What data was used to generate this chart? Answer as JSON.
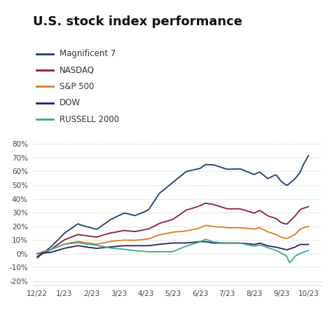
{
  "title": "U.S. stock index performance",
  "background_color": "#ffffff",
  "series_order": [
    "Magnificent 7",
    "NASDAQ",
    "S&P 500",
    "DOW",
    "RUSSELL 2000"
  ],
  "series": {
    "Magnificent 7": {
      "color": "#1b3f6e",
      "linewidth": 1.3
    },
    "NASDAQ": {
      "color": "#8b1a4a",
      "linewidth": 1.3
    },
    "S&P 500": {
      "color": "#e07b20",
      "linewidth": 1.3
    },
    "DOW": {
      "color": "#2a1a6b",
      "linewidth": 1.3
    },
    "RUSSELL 2000": {
      "color": "#3aaa8a",
      "linewidth": 1.3
    }
  },
  "yticks": [
    -20,
    -10,
    0,
    10,
    20,
    30,
    40,
    50,
    60,
    70,
    80
  ],
  "xtick_labels": [
    "12/22",
    "1/23",
    "2/23",
    "3/23",
    "4/23",
    "5/23",
    "6/23",
    "7/23",
    "8/23",
    "9/23",
    "10/23"
  ],
  "ylim": [
    -23,
    88
  ],
  "title_fontsize": 13,
  "legend_fontsize": 8.5,
  "tick_fontsize": 7.5
}
